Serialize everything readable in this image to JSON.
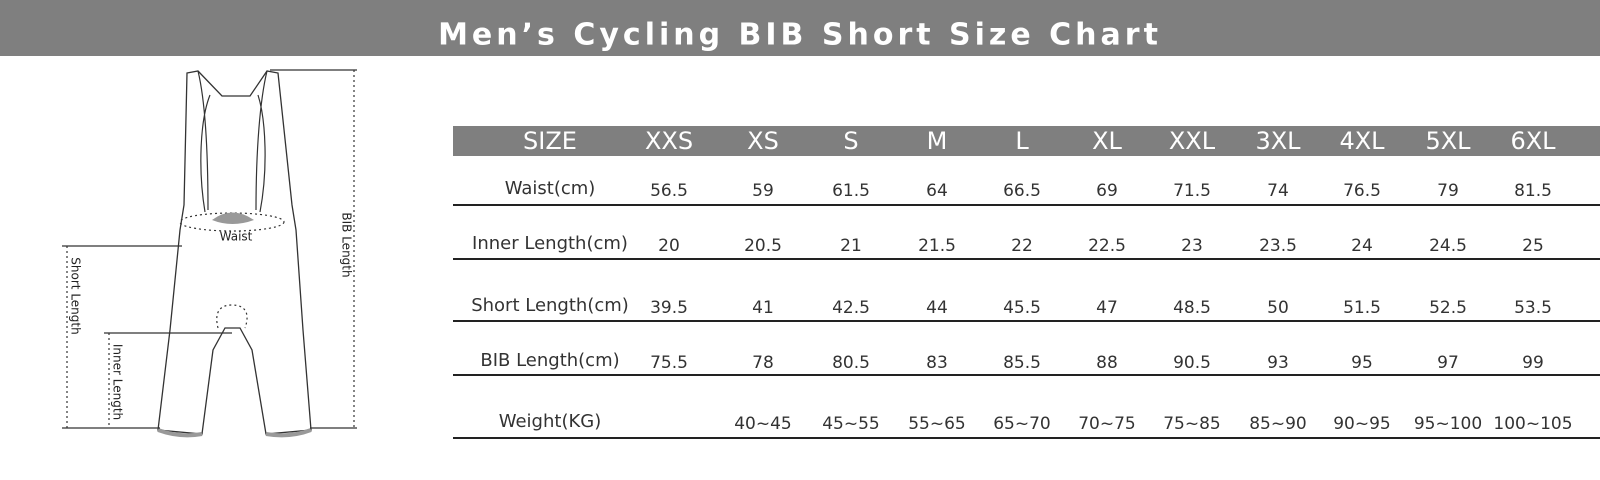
{
  "header": {
    "title": "Men’s Cycling BIB Short Size Chart"
  },
  "diagram": {
    "labels": {
      "waist": "Waist",
      "short_length": "Short Length",
      "inner_length": "Inner Length",
      "bib_length": "BIB Length"
    }
  },
  "table": {
    "header": [
      "SIZE",
      "XXS",
      "XS",
      "S",
      "M",
      "L",
      "XL",
      "XXL",
      "3XL",
      "4XL",
      "5XL",
      "6XL"
    ],
    "rows": [
      {
        "label": "Waist(cm)",
        "values": [
          56.5,
          59,
          61.5,
          64,
          66.5,
          69,
          71.5,
          74,
          76.5,
          79,
          81.5
        ]
      },
      {
        "label": "Inner Length(cm)",
        "values": [
          20,
          20.5,
          21,
          21.5,
          22,
          22.5,
          23,
          23.5,
          24,
          24.5,
          25
        ]
      },
      {
        "label": "Short Length(cm)",
        "values": [
          39.5,
          41,
          42.5,
          44,
          45.5,
          47,
          48.5,
          50,
          51.5,
          52.5,
          53.5
        ]
      },
      {
        "label": "BIB Length(cm)",
        "values": [
          75.5,
          78,
          80.5,
          83,
          85.5,
          88,
          90.5,
          93,
          95,
          97,
          99
        ]
      },
      {
        "label": "Weight(KG)",
        "values": [
          null,
          "40~45",
          "45~55",
          "55~65",
          "65~70",
          "70~75",
          "75~85",
          "85~90",
          "90~95",
          "95~100",
          "100~105"
        ]
      }
    ]
  }
}
